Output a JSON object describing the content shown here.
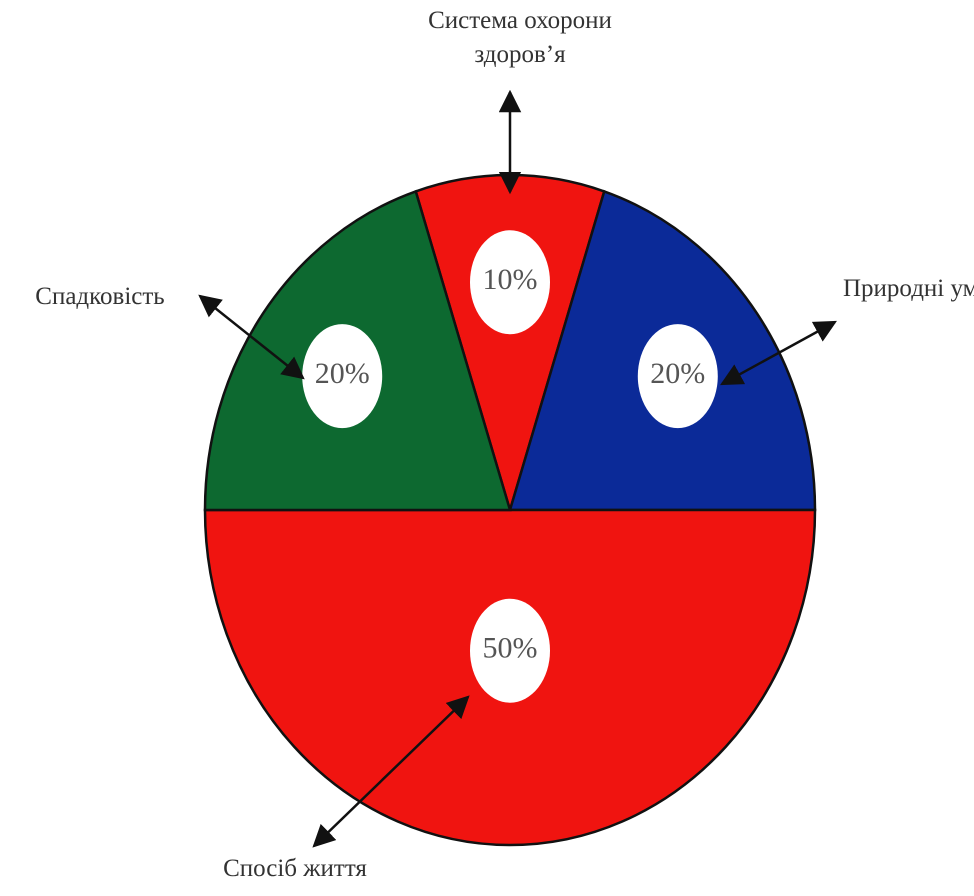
{
  "chart_data": {
    "type": "pie",
    "categories": [
      "Система охорони здоров’я",
      "Природні умови",
      "Спосіб життя",
      "Спадковість"
    ],
    "values": [
      10,
      20,
      50,
      20
    ],
    "value_labels": [
      "10%",
      "20%",
      "50%",
      "20%"
    ],
    "colors": [
      "#f01410",
      "#0b2a98",
      "#f01410",
      "#0d6930"
    ]
  }
}
